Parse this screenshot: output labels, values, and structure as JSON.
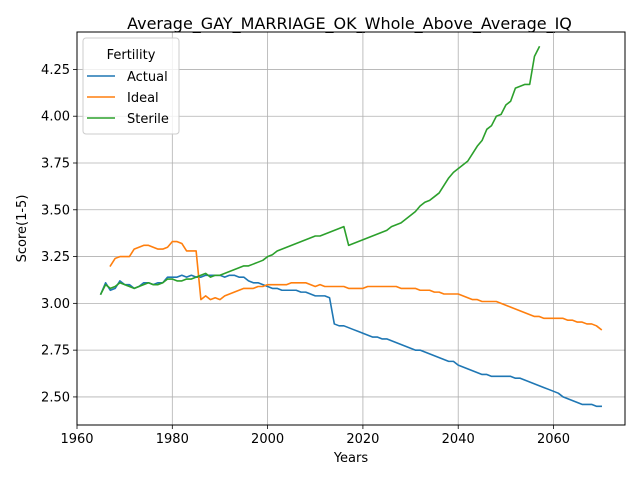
{
  "chart_data": {
    "type": "line",
    "title": "Average_GAY_MARRIAGE_OK_Whole_Above_Average_IQ",
    "xlabel": "Years",
    "ylabel": "Score(1-5)",
    "xlim": [
      1960,
      2075
    ],
    "ylim": [
      2.35,
      4.45
    ],
    "xticks": [
      1960,
      1980,
      2000,
      2020,
      2040,
      2060
    ],
    "yticks": [
      2.5,
      2.75,
      3.0,
      3.25,
      3.5,
      3.75,
      4.0,
      4.25
    ],
    "ytick_labels": [
      "2.50",
      "2.75",
      "3.00",
      "3.25",
      "3.50",
      "3.75",
      "4.00",
      "4.25"
    ],
    "grid": true,
    "legend": {
      "title": "Fertility",
      "placement": "upper-left"
    },
    "series": [
      {
        "name": "Actual",
        "color": "#1f77b4",
        "x": [
          1965,
          1966,
          1967,
          1968,
          1969,
          1970,
          1971,
          1972,
          1973,
          1974,
          1975,
          1976,
          1977,
          1978,
          1979,
          1980,
          1981,
          1982,
          1983,
          1984,
          1985,
          1986,
          1987,
          1988,
          1989,
          1990,
          1991,
          1992,
          1993,
          1994,
          1995,
          1996,
          1997,
          1998,
          1999,
          2000,
          2001,
          2002,
          2003,
          2004,
          2005,
          2006,
          2007,
          2008,
          2009,
          2010,
          2011,
          2012,
          2013,
          2014,
          2015,
          2016,
          2017,
          2018,
          2019,
          2020,
          2021,
          2022,
          2023,
          2024,
          2025,
          2026,
          2027,
          2028,
          2029,
          2030,
          2031,
          2032,
          2033,
          2034,
          2035,
          2036,
          2037,
          2038,
          2039,
          2040,
          2041,
          2042,
          2043,
          2044,
          2045,
          2046,
          2047,
          2048,
          2049,
          2050,
          2051,
          2052,
          2053,
          2054,
          2055,
          2056,
          2057,
          2058,
          2059,
          2060,
          2061,
          2062,
          2063,
          2064,
          2065,
          2066,
          2067,
          2068,
          2069,
          2070
        ],
        "y": [
          3.05,
          3.11,
          3.07,
          3.08,
          3.12,
          3.1,
          3.1,
          3.08,
          3.09,
          3.11,
          3.11,
          3.1,
          3.11,
          3.11,
          3.14,
          3.14,
          3.14,
          3.15,
          3.14,
          3.15,
          3.14,
          3.14,
          3.15,
          3.15,
          3.15,
          3.15,
          3.14,
          3.15,
          3.15,
          3.14,
          3.14,
          3.12,
          3.11,
          3.11,
          3.1,
          3.09,
          3.08,
          3.08,
          3.07,
          3.07,
          3.07,
          3.07,
          3.06,
          3.06,
          3.05,
          3.04,
          3.04,
          3.04,
          3.03,
          2.89,
          2.88,
          2.88,
          2.87,
          2.86,
          2.85,
          2.84,
          2.83,
          2.82,
          2.82,
          2.81,
          2.81,
          2.8,
          2.79,
          2.78,
          2.77,
          2.76,
          2.75,
          2.75,
          2.74,
          2.73,
          2.72,
          2.71,
          2.7,
          2.69,
          2.69,
          2.67,
          2.66,
          2.65,
          2.64,
          2.63,
          2.62,
          2.62,
          2.61,
          2.61,
          2.61,
          2.61,
          2.61,
          2.6,
          2.6,
          2.59,
          2.58,
          2.57,
          2.56,
          2.55,
          2.54,
          2.53,
          2.52,
          2.5,
          2.49,
          2.48,
          2.47,
          2.46,
          2.46,
          2.46,
          2.45,
          2.45
        ]
      },
      {
        "name": "Ideal",
        "color": "#ff7f0e",
        "x": [
          1967,
          1968,
          1969,
          1970,
          1971,
          1972,
          1973,
          1974,
          1975,
          1976,
          1977,
          1978,
          1979,
          1980,
          1981,
          1982,
          1983,
          1984,
          1985,
          1986,
          1987,
          1988,
          1989,
          1990,
          1991,
          1992,
          1993,
          1994,
          1995,
          1996,
          1997,
          1998,
          1999,
          2000,
          2001,
          2002,
          2003,
          2004,
          2005,
          2006,
          2007,
          2008,
          2009,
          2010,
          2011,
          2012,
          2013,
          2014,
          2015,
          2016,
          2017,
          2018,
          2019,
          2020,
          2021,
          2022,
          2023,
          2024,
          2025,
          2026,
          2027,
          2028,
          2029,
          2030,
          2031,
          2032,
          2033,
          2034,
          2035,
          2036,
          2037,
          2038,
          2039,
          2040,
          2041,
          2042,
          2043,
          2044,
          2045,
          2046,
          2047,
          2048,
          2049,
          2050,
          2051,
          2052,
          2053,
          2054,
          2055,
          2056,
          2057,
          2058,
          2059,
          2060,
          2061,
          2062,
          2063,
          2064,
          2065,
          2066,
          2067,
          2068,
          2069,
          2070
        ],
        "y": [
          3.2,
          3.24,
          3.25,
          3.25,
          3.25,
          3.29,
          3.3,
          3.31,
          3.31,
          3.3,
          3.29,
          3.29,
          3.3,
          3.33,
          3.33,
          3.32,
          3.28,
          3.28,
          3.28,
          3.02,
          3.04,
          3.02,
          3.03,
          3.02,
          3.04,
          3.05,
          3.06,
          3.07,
          3.08,
          3.08,
          3.08,
          3.09,
          3.09,
          3.1,
          3.1,
          3.1,
          3.1,
          3.1,
          3.11,
          3.11,
          3.11,
          3.11,
          3.1,
          3.09,
          3.1,
          3.09,
          3.09,
          3.09,
          3.09,
          3.09,
          3.08,
          3.08,
          3.08,
          3.08,
          3.09,
          3.09,
          3.09,
          3.09,
          3.09,
          3.09,
          3.09,
          3.08,
          3.08,
          3.08,
          3.08,
          3.07,
          3.07,
          3.07,
          3.06,
          3.06,
          3.05,
          3.05,
          3.05,
          3.05,
          3.04,
          3.03,
          3.02,
          3.02,
          3.01,
          3.01,
          3.01,
          3.01,
          3.0,
          2.99,
          2.98,
          2.97,
          2.96,
          2.95,
          2.94,
          2.93,
          2.93,
          2.92,
          2.92,
          2.92,
          2.92,
          2.92,
          2.91,
          2.91,
          2.9,
          2.9,
          2.89,
          2.89,
          2.88,
          2.86
        ]
      },
      {
        "name": "Sterile",
        "color": "#2ca02c",
        "x": [
          1965,
          1966,
          1967,
          1968,
          1969,
          1970,
          1971,
          1972,
          1973,
          1974,
          1975,
          1976,
          1977,
          1978,
          1979,
          1980,
          1981,
          1982,
          1983,
          1984,
          1985,
          1986,
          1987,
          1988,
          1989,
          1990,
          1991,
          1992,
          1993,
          1994,
          1995,
          1996,
          1997,
          1998,
          1999,
          2000,
          2001,
          2002,
          2003,
          2004,
          2005,
          2006,
          2007,
          2008,
          2009,
          2010,
          2011,
          2012,
          2013,
          2014,
          2015,
          2016,
          2017,
          2018,
          2019,
          2020,
          2021,
          2022,
          2023,
          2024,
          2025,
          2026,
          2027,
          2028,
          2029,
          2030,
          2031,
          2032,
          2033,
          2034,
          2035,
          2036,
          2037,
          2038,
          2039,
          2040,
          2041,
          2042,
          2043,
          2044,
          2045,
          2046,
          2047,
          2048,
          2049,
          2050,
          2051,
          2052,
          2053,
          2054,
          2055,
          2056,
          2057
        ],
        "y": [
          3.05,
          3.1,
          3.08,
          3.09,
          3.11,
          3.1,
          3.09,
          3.08,
          3.09,
          3.1,
          3.11,
          3.1,
          3.1,
          3.11,
          3.13,
          3.13,
          3.12,
          3.12,
          3.13,
          3.13,
          3.14,
          3.15,
          3.16,
          3.14,
          3.15,
          3.15,
          3.16,
          3.17,
          3.18,
          3.19,
          3.2,
          3.2,
          3.21,
          3.22,
          3.23,
          3.25,
          3.26,
          3.28,
          3.29,
          3.3,
          3.31,
          3.32,
          3.33,
          3.34,
          3.35,
          3.36,
          3.36,
          3.37,
          3.38,
          3.39,
          3.4,
          3.41,
          3.31,
          3.32,
          3.33,
          3.34,
          3.35,
          3.36,
          3.37,
          3.38,
          3.39,
          3.41,
          3.42,
          3.43,
          3.45,
          3.47,
          3.49,
          3.52,
          3.54,
          3.55,
          3.57,
          3.59,
          3.63,
          3.67,
          3.7,
          3.72,
          3.74,
          3.76,
          3.8,
          3.84,
          3.87,
          3.93,
          3.95,
          4.0,
          4.01,
          4.06,
          4.08,
          4.15,
          4.16,
          4.17,
          4.17,
          4.32,
          4.37
        ]
      }
    ]
  }
}
